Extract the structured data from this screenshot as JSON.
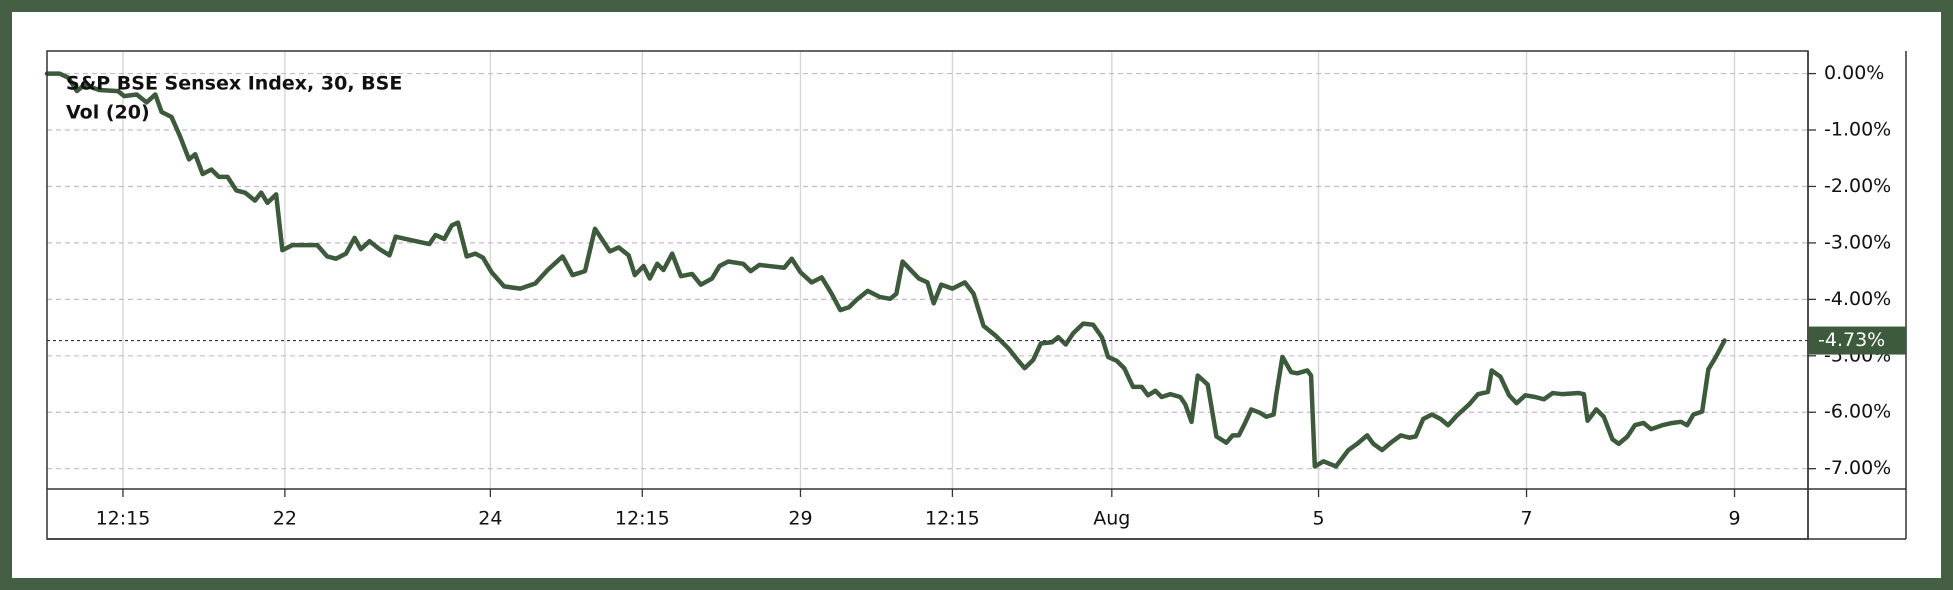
{
  "chart_data": {
    "type": "line",
    "title": "S&P BSE Sensex Index, 30, BSE",
    "subtitle": "Vol (20)",
    "x": [
      0,
      1,
      1.7,
      2.4,
      3,
      4.2,
      5.7,
      6.2,
      7.2,
      8,
      8.7,
      9.2,
      10,
      10.7,
      11.4,
      11.9,
      12.5,
      13.2,
      13.8,
      14.5,
      15.2,
      15.9,
      16.7,
      17.2,
      17.7,
      18.4,
      18.9,
      19.7,
      20.7,
      21.7,
      22.5,
      23.2,
      24,
      24.7,
      25.2,
      25.9,
      26.7,
      27.5,
      28,
      29.2,
      30.7,
      31.2,
      31.9,
      32.5,
      33,
      33.7,
      34.4,
      35,
      35.7,
      36.7,
      38,
      39.2,
      40.2,
      41.4,
      42.2,
      43.2,
      44,
      45.2,
      45.9,
      46.7,
      47.2,
      47.9,
      48.4,
      49,
      49.5,
      50.2,
      50.9,
      51.8,
      52.5,
      53.4,
      54,
      54.7,
      55.9,
      56.5,
      57.2,
      58,
      59.2,
      59.8,
      60.5,
      61.4,
      62.2,
      63,
      63.7,
      64.4,
      65,
      65.9,
      66.9,
      67.7,
      68.2,
      68.7,
      70,
      70.7,
      71.2,
      71.8,
      72.7,
      73.7,
      74.4,
      75.2,
      76.2,
      77.2,
      78,
      78.5,
      79.2,
      79.8,
      80.7,
      81.2,
      81.8,
      82.4,
      83.2,
      84,
      84.7,
      85.2,
      85.9,
      86.5,
      87.2,
      87.9,
      88.4,
      89,
      89.5,
      90.2,
      91,
      91.4,
      91.9,
      92.4,
      93.2,
      93.9,
      94.7,
      95.2,
      95.7,
      96.2,
      96.7,
      97.4,
      97.9,
      98.5,
      98.7,
      99.2,
      99.9,
      100.4,
      101.2,
      101.5,
      101.8,
      102.5,
      103.5,
      104.5,
      105.2,
      106,
      106.5,
      107.2,
      107.9,
      108.7,
      109.4,
      109.9,
      110.5,
      111.2,
      111.9,
      112.5,
      113.2,
      114.2,
      114.9,
      115.7,
      116,
      116.7,
      117.4,
      118,
      118.7,
      119.5,
      120.2,
      120.9,
      121.7,
      123,
      123.4,
      123.7,
      124.4,
      125,
      125.7,
      126.2,
      126.9,
      127.5,
      128.2,
      128.8,
      129.7,
      130.5,
      131.2,
      131.7,
      132.2,
      132.9,
      133.4,
      134,
      134.7
    ],
    "series": [
      {
        "color": "#3d5a3c",
        "values": [
          0,
          0,
          -0.07,
          -0.31,
          -0.2,
          -0.29,
          -0.31,
          -0.4,
          -0.37,
          -0.51,
          -0.37,
          -0.68,
          -0.77,
          -1.12,
          -1.52,
          -1.43,
          -1.78,
          -1.7,
          -1.83,
          -1.83,
          -2.07,
          -2.11,
          -2.25,
          -2.11,
          -2.29,
          -2.14,
          -3.13,
          -3.04,
          -3.04,
          -3.04,
          -3.24,
          -3.28,
          -3.19,
          -2.91,
          -3.11,
          -2.97,
          -3.11,
          -3.22,
          -2.89,
          -2.95,
          -3.02,
          -2.86,
          -2.93,
          -2.69,
          -2.64,
          -3.24,
          -3.19,
          -3.26,
          -3.52,
          -3.77,
          -3.81,
          -3.72,
          -3.48,
          -3.24,
          -3.57,
          -3.5,
          -2.75,
          -3.15,
          -3.08,
          -3.22,
          -3.57,
          -3.41,
          -3.63,
          -3.37,
          -3.48,
          -3.19,
          -3.59,
          -3.55,
          -3.74,
          -3.63,
          -3.41,
          -3.33,
          -3.37,
          -3.5,
          -3.39,
          -3.41,
          -3.44,
          -3.28,
          -3.52,
          -3.7,
          -3.61,
          -3.9,
          -4.19,
          -4.14,
          -4.01,
          -3.85,
          -3.96,
          -3.99,
          -3.9,
          -3.33,
          -3.63,
          -3.7,
          -4.07,
          -3.74,
          -3.81,
          -3.7,
          -3.9,
          -4.47,
          -4.65,
          -4.87,
          -5.09,
          -5.22,
          -5.07,
          -4.78,
          -4.76,
          -4.67,
          -4.8,
          -4.6,
          -4.43,
          -4.45,
          -4.67,
          -5.02,
          -5.09,
          -5.22,
          -5.55,
          -5.55,
          -5.7,
          -5.62,
          -5.73,
          -5.68,
          -5.73,
          -5.86,
          -6.17,
          -5.35,
          -5.51,
          -6.43,
          -6.54,
          -6.41,
          -6.41,
          -6.19,
          -5.95,
          -6.01,
          -6.08,
          -6.04,
          -5.7,
          -5.02,
          -5.29,
          -5.31,
          -5.26,
          -5.35,
          -6.96,
          -6.87,
          -6.96,
          -6.67,
          -6.56,
          -6.41,
          -6.56,
          -6.67,
          -6.54,
          -6.41,
          -6.45,
          -6.43,
          -6.12,
          -6.04,
          -6.12,
          -6.23,
          -6.06,
          -5.86,
          -5.68,
          -5.64,
          -5.26,
          -5.37,
          -5.7,
          -5.84,
          -5.7,
          -5.73,
          -5.77,
          -5.66,
          -5.68,
          -5.66,
          -5.68,
          -6.15,
          -5.95,
          -6.08,
          -6.48,
          -6.56,
          -6.43,
          -6.23,
          -6.19,
          -6.3,
          -6.23,
          -6.19,
          -6.17,
          -6.23,
          -6.04,
          -5.99,
          -5.24,
          -5.02,
          -4.73
        ]
      }
    ],
    "xlim": [
      0,
      141.4
    ],
    "xticks": [
      {
        "value": 6.1,
        "label": "12:15"
      },
      {
        "value": 19.1,
        "label": "22"
      },
      {
        "value": 35.6,
        "label": "24"
      },
      {
        "value": 47.8,
        "label": "12:15"
      },
      {
        "value": 60.5,
        "label": "29"
      },
      {
        "value": 72.7,
        "label": "12:15"
      },
      {
        "value": 85.5,
        "label": "Aug"
      },
      {
        "value": 102.1,
        "label": "5"
      },
      {
        "value": 118.8,
        "label": "7"
      },
      {
        "value": 135.5,
        "label": "9"
      }
    ],
    "ylim": [
      -7.36,
      0.4
    ],
    "yticks": [
      {
        "value": 0,
        "label": "0.00%"
      },
      {
        "value": -1,
        "label": "-1.00%"
      },
      {
        "value": -2,
        "label": "-2.00%"
      },
      {
        "value": -3,
        "label": "-3.00%"
      },
      {
        "value": -4,
        "label": "-4.00%"
      },
      {
        "value": -5,
        "label": "-5.00%"
      },
      {
        "value": -6,
        "label": "-6.00%"
      },
      {
        "value": -7,
        "label": "-7.00%"
      }
    ],
    "last_value": {
      "value": -4.73,
      "label": "-4.73%"
    },
    "grid": true
  }
}
